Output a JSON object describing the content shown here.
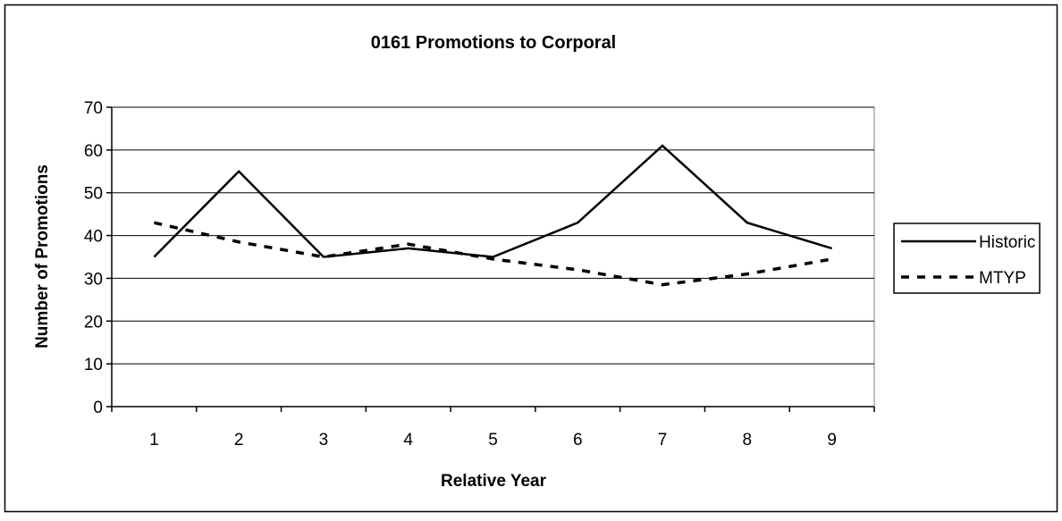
{
  "chart_data": {
    "type": "line",
    "title": "0161 Promotions to Corporal",
    "x_label": "Relative Year",
    "y_label": "Number of Promotions",
    "categories": [
      "1",
      "2",
      "3",
      "4",
      "5",
      "6",
      "7",
      "8",
      "9"
    ],
    "series": [
      {
        "name": "Historic",
        "color": "#000000",
        "dash": "solid",
        "values": [
          35,
          55,
          35,
          37,
          35,
          43,
          61,
          43,
          37
        ]
      },
      {
        "name": "MTYP",
        "color": "#000000",
        "dash": "dashed",
        "values": [
          43,
          38.5,
          35,
          38,
          34.5,
          32,
          28.5,
          31,
          34.5
        ]
      }
    ],
    "ylim": [
      0,
      70
    ],
    "yticks": [
      0,
      10,
      20,
      30,
      40,
      50,
      60,
      70
    ],
    "grid": true,
    "legend": "right"
  }
}
